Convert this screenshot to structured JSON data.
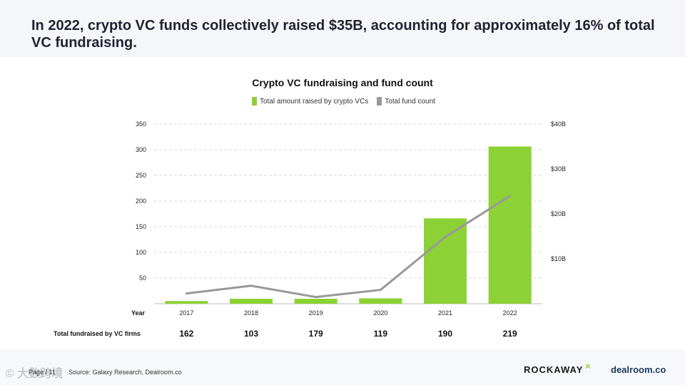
{
  "header": {
    "headline": "In 2022, crypto VC funds collectively raised $35B, accounting for approximately 16% of total VC fundraising."
  },
  "footer": {
    "page": "Page / 11",
    "source": "Source: Galaxy Research, Dealroom.co",
    "logo_rockaway": "ROCKAWAY",
    "logo_rockaway_mark": "×",
    "logo_dealroom": "dealroom.co",
    "watermark": "© 大数跨境"
  },
  "colors": {
    "bar": "#8cd135",
    "line": "#999999",
    "grid": "#d9d9d9",
    "text": "#222222"
  },
  "chart_data": {
    "type": "bar",
    "title": "Crypto VC fundraising and fund count",
    "legend": [
      "Total amount raised by crypto VCs",
      "Total fund count"
    ],
    "categories": [
      "2017",
      "2018",
      "2019",
      "2020",
      "2021",
      "2022"
    ],
    "x_label": "Year",
    "series": [
      {
        "name": "Total amount raised by crypto VCs",
        "axis": "right",
        "unit": "B",
        "values": [
          0.6,
          1.1,
          1.1,
          1.2,
          19,
          35
        ]
      },
      {
        "name": "Total fund count",
        "axis": "left",
        "type": "line",
        "values": [
          20,
          35,
          13,
          27,
          130,
          210
        ]
      }
    ],
    "left_axis": {
      "ticks": [
        50,
        100,
        150,
        200,
        250,
        300,
        350
      ],
      "ylim": [
        0,
        350
      ]
    },
    "right_axis": {
      "ticks": [
        "$10B",
        "$20B",
        "$30B",
        "$40B"
      ],
      "tick_values": [
        10,
        20,
        30,
        40
      ],
      "ylim": [
        0,
        40
      ]
    },
    "fundraised_row_label": "Total fundraised by VC firms",
    "fundraised_values": [
      "162",
      "103",
      "179",
      "119",
      "190",
      "219"
    ]
  }
}
